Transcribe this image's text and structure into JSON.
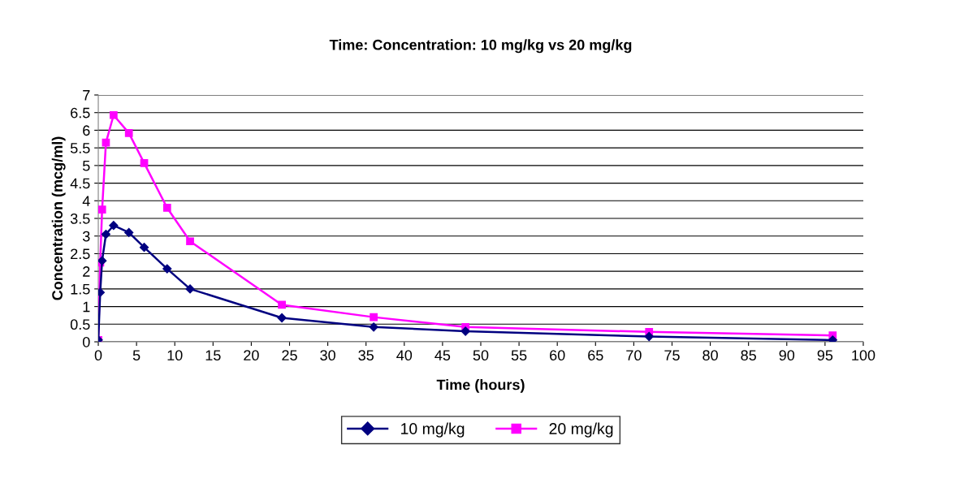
{
  "chart_data": {
    "type": "line",
    "title": "Time: Concentration: 10 mg/kg vs 20 mg/kg",
    "xlabel": "Time (hours)",
    "ylabel": "Concentration (mcg/ml)",
    "x": [
      0,
      0.25,
      0.5,
      1,
      2,
      4,
      6,
      9,
      12,
      24,
      36,
      48,
      72,
      96
    ],
    "series": [
      {
        "name": "10 mg/kg",
        "color": "#000080",
        "marker": "diamond",
        "values": [
          0.05,
          1.4,
          2.3,
          3.05,
          3.3,
          3.1,
          2.68,
          2.07,
          1.5,
          0.68,
          0.42,
          0.3,
          0.15,
          0.05
        ]
      },
      {
        "name": "20 mg/kg",
        "color": "#ff00ff",
        "marker": "square",
        "values": [
          0.05,
          2.25,
          3.75,
          5.65,
          6.43,
          5.92,
          5.07,
          3.8,
          2.85,
          1.05,
          0.7,
          0.42,
          0.28,
          0.18
        ]
      }
    ],
    "xlim": [
      0,
      100
    ],
    "xticks": [
      0,
      5,
      10,
      15,
      20,
      25,
      30,
      35,
      40,
      45,
      50,
      55,
      60,
      65,
      70,
      75,
      80,
      85,
      90,
      95,
      100
    ],
    "ylim": [
      0,
      7
    ],
    "yticks": [
      0,
      0.5,
      1,
      1.5,
      2,
      2.5,
      3,
      3.5,
      4,
      4.5,
      5,
      5.5,
      6,
      6.5,
      7
    ],
    "grid": "y",
    "legend": "bottom",
    "line_style": "solid"
  }
}
